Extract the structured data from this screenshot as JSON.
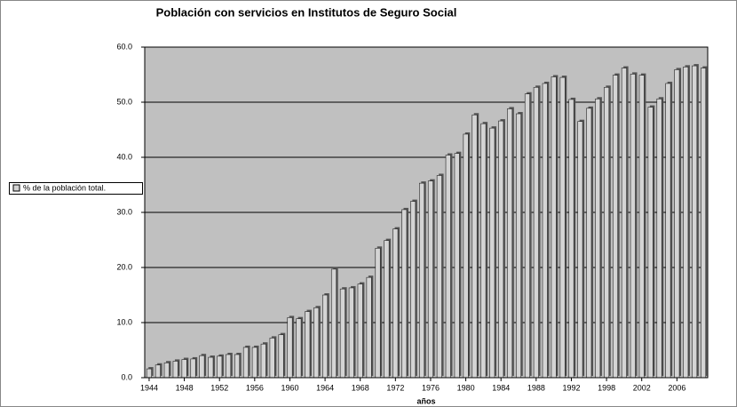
{
  "chart_data": {
    "type": "bar",
    "title": "Población con servicios en Institutos de Seguro Social",
    "x_label": "años",
    "categories": [
      "1944",
      null,
      null,
      null,
      "1948",
      null,
      null,
      null,
      "1952",
      null,
      null,
      null,
      "1956",
      null,
      null,
      null,
      "1960",
      null,
      null,
      null,
      "1964",
      null,
      null,
      null,
      "1968",
      null,
      null,
      null,
      "1972",
      null,
      null,
      null,
      "1976",
      null,
      null,
      null,
      "1980",
      null,
      null,
      null,
      "1984",
      null,
      null,
      null,
      "1988",
      null,
      null,
      null,
      "1992",
      null,
      null,
      null,
      "1998",
      null,
      null,
      null,
      "2002",
      null,
      null,
      null,
      "2006",
      null,
      null,
      null
    ],
    "series": [
      {
        "name": "% de la población total.",
        "color": "#d4d4d4",
        "values": [
          1.6,
          2.3,
          2.7,
          3.0,
          3.3,
          3.4,
          4.0,
          3.7,
          3.9,
          4.2,
          4.2,
          5.5,
          5.5,
          6.1,
          7.2,
          7.8,
          10.9,
          10.7,
          12.0,
          12.7,
          15.0,
          19.7,
          16.1,
          16.3,
          17.0,
          18.2,
          23.5,
          24.9,
          27.0,
          30.5,
          32.0,
          35.3,
          35.7,
          36.7,
          40.4,
          40.7,
          44.2,
          47.7,
          46.1,
          45.3,
          46.6,
          48.8,
          47.9,
          51.5,
          52.7,
          53.4,
          54.6,
          54.5,
          50.5,
          46.5,
          48.9,
          50.6,
          52.7,
          54.9,
          56.2,
          55.1,
          54.9,
          49.1,
          50.6,
          53.4,
          55.9,
          56.4,
          56.6,
          56.2
        ]
      }
    ],
    "ylim": [
      0,
      60
    ],
    "yticks": [
      {
        "value": 0,
        "label": "0.0"
      },
      {
        "value": 10,
        "label": "10.0"
      },
      {
        "value": 20,
        "label": "20.0"
      },
      {
        "value": 30,
        "label": "30.0"
      },
      {
        "value": 40,
        "label": "40.0"
      },
      {
        "value": 50,
        "label": "50.0"
      },
      {
        "value": 60,
        "label": "60.0"
      }
    ],
    "grid": true,
    "plot_background": "#c0c0c0",
    "legend": "left"
  }
}
